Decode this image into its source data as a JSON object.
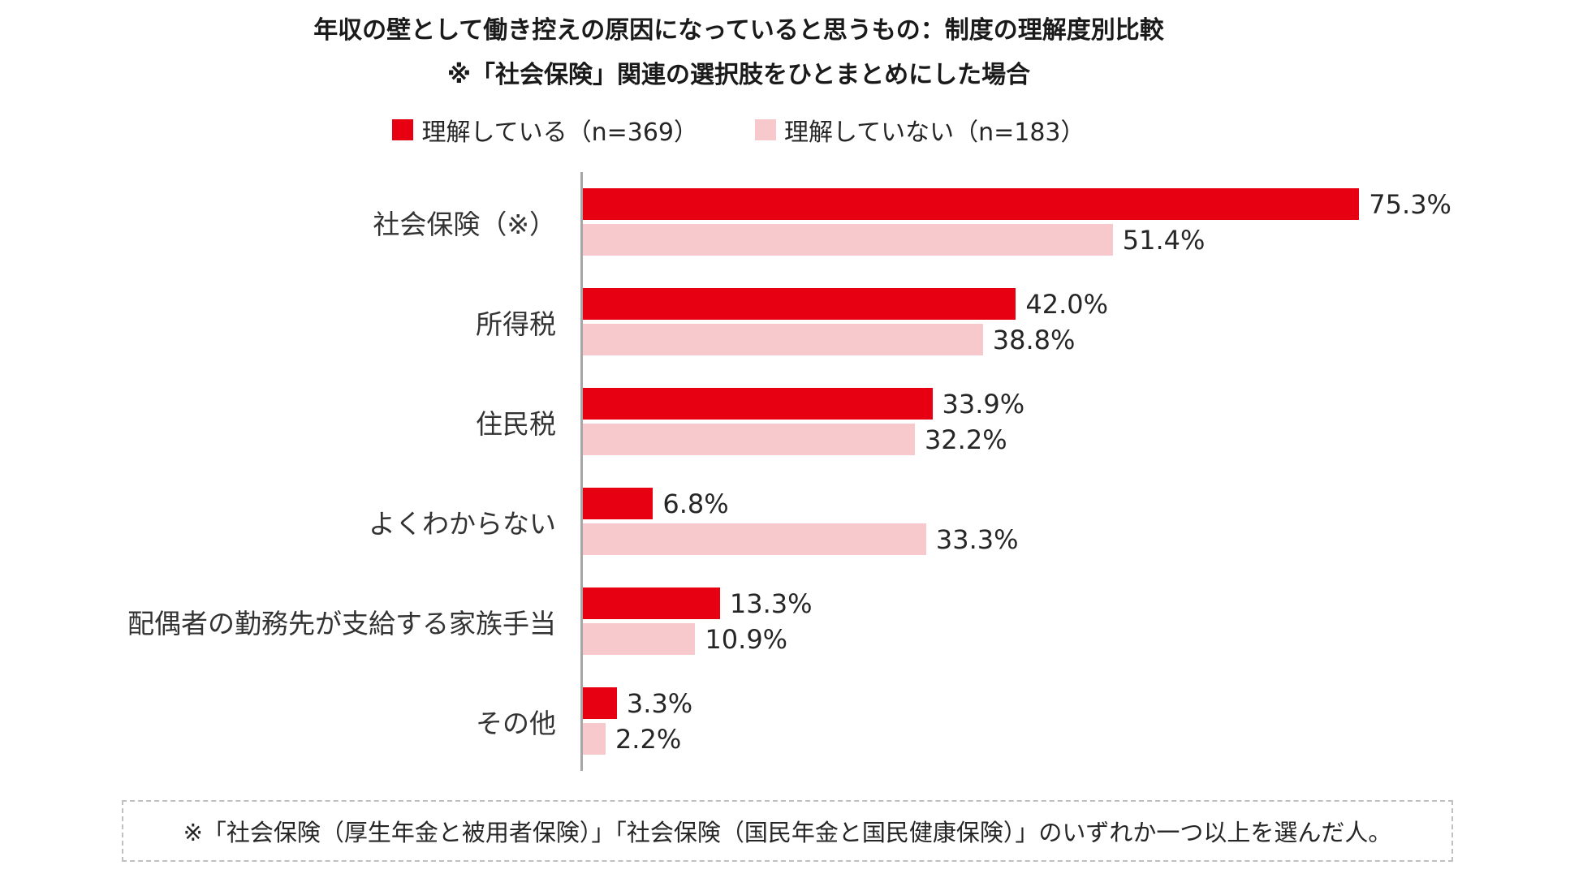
{
  "title": "年収の壁として働き控えの原因になっていると思うもの：制度の理解度別比較",
  "subtitle": "※「社会保険」関連の選択肢をひとまとめにした場合",
  "legend": [
    {
      "label": "理解している（n=369）",
      "color": "#e60012"
    },
    {
      "label": "理解していない（n=183）",
      "color": "#f7c9cd"
    }
  ],
  "footnote": "※「社会保険（厚生年金と被用者保険）」「社会保険（国民年金と国民健康保険）」のいずれか一つ以上を選んだ人。",
  "chart_data": {
    "type": "bar",
    "orientation": "horizontal",
    "title": "年収の壁として働き控えの原因になっていると思うもの：制度の理解度別比較",
    "subtitle": "※「社会保険」関連の選択肢をひとまとめにした場合",
    "categories": [
      "社会保険（※）",
      "所得税",
      "住民税",
      "よくわからない",
      "配偶者の勤務先が支給する家族手当",
      "その他"
    ],
    "series": [
      {
        "name": "理解している（n=369）",
        "color": "#e60012",
        "values": [
          75.3,
          42.0,
          33.9,
          6.8,
          13.3,
          3.3
        ]
      },
      {
        "name": "理解していない（n=183）",
        "color": "#f7c9cd",
        "values": [
          51.4,
          38.8,
          32.2,
          33.3,
          10.9,
          2.2
        ]
      }
    ],
    "unit": "%",
    "xlim": [
      0,
      100
    ],
    "grid": false,
    "legend_position": "top",
    "axis_color": "#a6a6a6"
  }
}
